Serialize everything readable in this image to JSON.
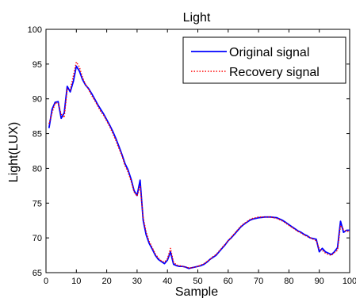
{
  "chart_data": {
    "type": "line",
    "title": "Light",
    "xlabel": "Sample",
    "ylabel": "Light(LUX)",
    "xlim": [
      0,
      100
    ],
    "ylim": [
      65,
      100
    ],
    "xticks": [
      0,
      10,
      20,
      30,
      40,
      50,
      60,
      70,
      80,
      90,
      100
    ],
    "yticks": [
      65,
      70,
      75,
      80,
      85,
      90,
      95,
      100
    ],
    "grid": false,
    "legend_position": "top-right",
    "series": [
      {
        "name": "Original signal",
        "color": "#0000ff",
        "style": "solid",
        "points": [
          [
            1,
            85.8
          ],
          [
            2,
            88.5
          ],
          [
            3,
            89.5
          ],
          [
            4,
            89.6
          ],
          [
            5,
            87.2
          ],
          [
            6,
            88.0
          ],
          [
            7,
            91.8
          ],
          [
            8,
            91.0
          ],
          [
            9,
            92.5
          ],
          [
            10,
            94.7
          ],
          [
            11,
            94.0
          ],
          [
            12,
            92.8
          ],
          [
            13,
            92.0
          ],
          [
            14,
            91.5
          ],
          [
            15,
            90.8
          ],
          [
            16,
            90.0
          ],
          [
            17,
            89.2
          ],
          [
            18,
            88.5
          ],
          [
            19,
            87.8
          ],
          [
            20,
            87.0
          ],
          [
            21,
            86.2
          ],
          [
            22,
            85.3
          ],
          [
            23,
            84.3
          ],
          [
            24,
            83.2
          ],
          [
            25,
            82.0
          ],
          [
            26,
            80.7
          ],
          [
            27,
            79.8
          ],
          [
            28,
            78.5
          ],
          [
            29,
            76.8
          ],
          [
            30,
            76.1
          ],
          [
            31,
            78.3
          ],
          [
            32,
            72.5
          ],
          [
            33,
            70.4
          ],
          [
            34,
            69.2
          ],
          [
            35,
            68.4
          ],
          [
            36,
            67.5
          ],
          [
            37,
            66.9
          ],
          [
            38,
            66.6
          ],
          [
            39,
            66.3
          ],
          [
            40,
            66.8
          ],
          [
            41,
            68.0
          ],
          [
            42,
            66.2
          ],
          [
            43,
            66.0
          ],
          [
            44,
            65.9
          ],
          [
            45,
            65.9
          ],
          [
            46,
            65.8
          ],
          [
            47,
            65.6
          ],
          [
            48,
            65.7
          ],
          [
            49,
            65.8
          ],
          [
            50,
            65.9
          ],
          [
            51,
            66.0
          ],
          [
            52,
            66.2
          ],
          [
            53,
            66.5
          ],
          [
            54,
            66.9
          ],
          [
            55,
            67.2
          ],
          [
            56,
            67.5
          ],
          [
            57,
            68.0
          ],
          [
            58,
            68.5
          ],
          [
            59,
            69.0
          ],
          [
            60,
            69.6
          ],
          [
            61,
            70.0
          ],
          [
            62,
            70.5
          ],
          [
            63,
            71.0
          ],
          [
            64,
            71.5
          ],
          [
            65,
            71.9
          ],
          [
            66,
            72.2
          ],
          [
            67,
            72.5
          ],
          [
            68,
            72.7
          ],
          [
            69,
            72.8
          ],
          [
            70,
            72.9
          ],
          [
            71,
            72.95
          ],
          [
            72,
            73.0
          ],
          [
            73,
            73.0
          ],
          [
            74,
            73.0
          ],
          [
            75,
            72.95
          ],
          [
            76,
            72.9
          ],
          [
            77,
            72.7
          ],
          [
            78,
            72.5
          ],
          [
            79,
            72.2
          ],
          [
            80,
            71.9
          ],
          [
            81,
            71.6
          ],
          [
            82,
            71.3
          ],
          [
            83,
            71.0
          ],
          [
            84,
            70.8
          ],
          [
            85,
            70.5
          ],
          [
            86,
            70.3
          ],
          [
            87,
            70.0
          ],
          [
            88,
            69.9
          ],
          [
            89,
            69.8
          ],
          [
            90,
            68.0
          ],
          [
            91,
            68.5
          ],
          [
            92,
            68.0
          ],
          [
            93,
            67.8
          ],
          [
            94,
            67.6
          ],
          [
            95,
            68.0
          ],
          [
            96,
            68.6
          ],
          [
            97,
            72.4
          ],
          [
            98,
            70.8
          ],
          [
            99,
            71.1
          ],
          [
            100,
            71.1
          ]
        ]
      },
      {
        "name": "Recovery signal",
        "color": "#ff0000",
        "style": "dotted",
        "points": [
          [
            1,
            86.4
          ],
          [
            2,
            88.0
          ],
          [
            3,
            89.4
          ],
          [
            4,
            89.4
          ],
          [
            5,
            87.8
          ],
          [
            6,
            87.3
          ],
          [
            7,
            91.4
          ],
          [
            8,
            91.3
          ],
          [
            9,
            93.3
          ],
          [
            10,
            95.3
          ],
          [
            11,
            94.6
          ],
          [
            12,
            93.1
          ],
          [
            13,
            92.1
          ],
          [
            14,
            91.4
          ],
          [
            15,
            90.5
          ],
          [
            16,
            89.8
          ],
          [
            17,
            89.0
          ],
          [
            18,
            88.2
          ],
          [
            19,
            87.6
          ],
          [
            20,
            86.8
          ],
          [
            21,
            86.0
          ],
          [
            22,
            85.0
          ],
          [
            23,
            84.0
          ],
          [
            24,
            82.9
          ],
          [
            25,
            81.8
          ],
          [
            26,
            80.4
          ],
          [
            27,
            79.5
          ],
          [
            28,
            78.2
          ],
          [
            29,
            76.6
          ],
          [
            30,
            76.0
          ],
          [
            31,
            77.5
          ],
          [
            32,
            72.9
          ],
          [
            33,
            70.8
          ],
          [
            34,
            69.5
          ],
          [
            35,
            68.6
          ],
          [
            36,
            67.7
          ],
          [
            37,
            67.1
          ],
          [
            38,
            66.7
          ],
          [
            39,
            66.5
          ],
          [
            40,
            67.0
          ],
          [
            41,
            68.5
          ],
          [
            42,
            66.5
          ],
          [
            43,
            66.1
          ],
          [
            44,
            66.0
          ],
          [
            45,
            65.9
          ],
          [
            46,
            65.8
          ],
          [
            47,
            65.7
          ],
          [
            48,
            65.7
          ],
          [
            49,
            65.8
          ],
          [
            50,
            65.9
          ],
          [
            51,
            66.1
          ],
          [
            52,
            66.3
          ],
          [
            53,
            66.6
          ],
          [
            54,
            66.9
          ],
          [
            55,
            67.3
          ],
          [
            56,
            67.6
          ],
          [
            57,
            68.1
          ],
          [
            58,
            68.6
          ],
          [
            59,
            69.1
          ],
          [
            60,
            69.6
          ],
          [
            61,
            70.1
          ],
          [
            62,
            70.6
          ],
          [
            63,
            71.1
          ],
          [
            64,
            71.6
          ],
          [
            65,
            72.0
          ],
          [
            66,
            72.3
          ],
          [
            67,
            72.6
          ],
          [
            68,
            72.8
          ],
          [
            69,
            72.9
          ],
          [
            70,
            73.0
          ],
          [
            71,
            73.0
          ],
          [
            72,
            73.0
          ],
          [
            73,
            73.0
          ],
          [
            74,
            73.0
          ],
          [
            75,
            72.9
          ],
          [
            76,
            72.8
          ],
          [
            77,
            72.6
          ],
          [
            78,
            72.4
          ],
          [
            79,
            72.1
          ],
          [
            80,
            71.8
          ],
          [
            81,
            71.5
          ],
          [
            82,
            71.2
          ],
          [
            83,
            70.9
          ],
          [
            84,
            70.7
          ],
          [
            85,
            70.4
          ],
          [
            86,
            70.2
          ],
          [
            87,
            70.0
          ],
          [
            88,
            69.8
          ],
          [
            89,
            69.6
          ],
          [
            90,
            68.4
          ],
          [
            91,
            68.2
          ],
          [
            92,
            67.8
          ],
          [
            93,
            67.6
          ],
          [
            94,
            67.5
          ],
          [
            95,
            67.9
          ],
          [
            96,
            68.2
          ],
          [
            97,
            71.8
          ],
          [
            98,
            71.2
          ],
          [
            99,
            70.9
          ],
          [
            100,
            71.0
          ]
        ]
      }
    ]
  }
}
